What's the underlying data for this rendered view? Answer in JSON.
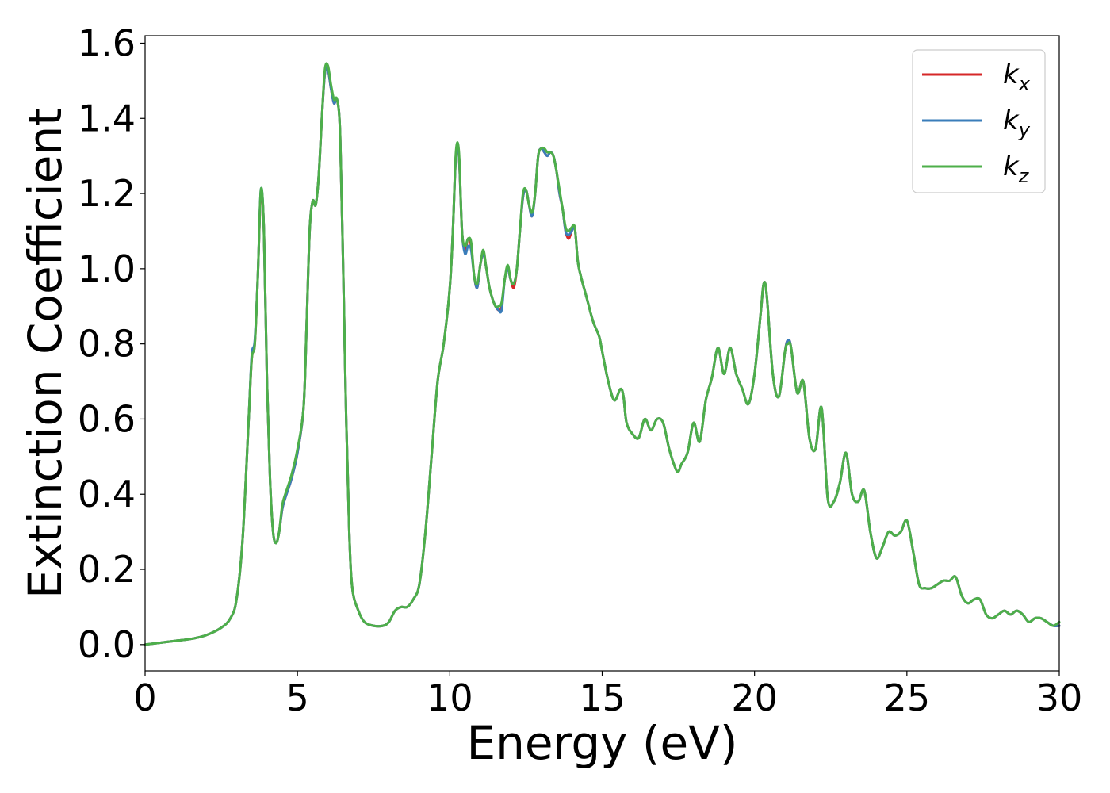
{
  "chart_data": {
    "type": "line",
    "xlabel": "Energy (eV)",
    "ylabel": "Extinction Coefficient",
    "xlim": [
      0,
      30
    ],
    "ylim": [
      -0.07,
      1.62
    ],
    "xticks": [
      0,
      5,
      10,
      15,
      20,
      25,
      30
    ],
    "xtick_labels": [
      "0",
      "5",
      "10",
      "15",
      "20",
      "25",
      "30"
    ],
    "yticks": [
      0.0,
      0.2,
      0.4,
      0.6,
      0.8,
      1.0,
      1.2,
      1.4,
      1.6
    ],
    "ytick_labels": [
      "0.0",
      "0.2",
      "0.4",
      "0.6",
      "0.8",
      "1.0",
      "1.2",
      "1.4",
      "1.6"
    ],
    "grid": false,
    "legend_position": "top-right",
    "series": [
      {
        "name": "kx",
        "label_main": "k",
        "label_sub": "x",
        "color": "#d62728",
        "x": [
          0,
          0.5,
          1.0,
          1.5,
          2.0,
          2.5,
          2.8,
          3.0,
          3.2,
          3.4,
          3.5,
          3.6,
          3.7,
          3.8,
          3.9,
          4.0,
          4.1,
          4.2,
          4.3,
          4.4,
          4.5,
          4.6,
          4.8,
          5.0,
          5.2,
          5.3,
          5.4,
          5.5,
          5.6,
          5.7,
          5.8,
          5.9,
          6.0,
          6.1,
          6.2,
          6.3,
          6.4,
          6.5,
          6.6,
          6.7,
          6.8,
          7.0,
          7.2,
          7.5,
          7.8,
          8.0,
          8.2,
          8.4,
          8.6,
          8.8,
          9.0,
          9.2,
          9.4,
          9.6,
          9.8,
          10.0,
          10.1,
          10.2,
          10.3,
          10.4,
          10.5,
          10.6,
          10.7,
          10.8,
          10.9,
          11.0,
          11.1,
          11.2,
          11.3,
          11.4,
          11.5,
          11.6,
          11.7,
          11.8,
          11.9,
          12.0,
          12.1,
          12.2,
          12.3,
          12.4,
          12.5,
          12.6,
          12.7,
          12.8,
          12.9,
          13.0,
          13.1,
          13.2,
          13.3,
          13.4,
          13.5,
          13.6,
          13.7,
          13.8,
          13.9,
          14.0,
          14.1,
          14.2,
          14.3,
          14.5,
          14.7,
          14.9,
          15.0,
          15.2,
          15.4,
          15.6,
          15.7,
          15.8,
          16.0,
          16.2,
          16.4,
          16.6,
          16.8,
          17.0,
          17.2,
          17.4,
          17.5,
          17.6,
          17.8,
          18.0,
          18.2,
          18.4,
          18.6,
          18.8,
          19.0,
          19.2,
          19.4,
          19.6,
          19.8,
          20.0,
          20.2,
          20.3,
          20.4,
          20.6,
          20.8,
          21.0,
          21.1,
          21.2,
          21.4,
          21.6,
          21.8,
          22.0,
          22.2,
          22.4,
          22.6,
          22.8,
          23.0,
          23.2,
          23.4,
          23.6,
          23.8,
          24.0,
          24.2,
          24.4,
          24.6,
          24.8,
          25.0,
          25.2,
          25.4,
          25.6,
          25.8,
          26.0,
          26.2,
          26.4,
          26.6,
          26.8,
          27.0,
          27.2,
          27.4,
          27.6,
          27.8,
          28.0,
          28.2,
          28.4,
          28.6,
          28.8,
          29.0,
          29.2,
          29.4,
          29.6,
          29.8,
          30.0
        ],
        "y": [
          0.0,
          0.005,
          0.01,
          0.015,
          0.025,
          0.045,
          0.07,
          0.12,
          0.28,
          0.6,
          0.76,
          0.8,
          0.98,
          1.2,
          1.1,
          0.7,
          0.44,
          0.3,
          0.27,
          0.3,
          0.36,
          0.39,
          0.44,
          0.51,
          0.63,
          0.85,
          1.1,
          1.18,
          1.17,
          1.25,
          1.4,
          1.52,
          1.53,
          1.48,
          1.44,
          1.45,
          1.36,
          1.0,
          0.6,
          0.3,
          0.15,
          0.09,
          0.06,
          0.05,
          0.05,
          0.06,
          0.09,
          0.1,
          0.1,
          0.12,
          0.16,
          0.3,
          0.5,
          0.7,
          0.8,
          0.95,
          1.1,
          1.3,
          1.3,
          1.1,
          1.05,
          1.08,
          1.06,
          0.98,
          0.95,
          1.01,
          1.04,
          1.0,
          0.95,
          0.92,
          0.9,
          0.89,
          0.9,
          0.97,
          1.0,
          0.97,
          0.95,
          1.0,
          1.1,
          1.19,
          1.21,
          1.17,
          1.14,
          1.2,
          1.3,
          1.32,
          1.31,
          1.3,
          1.31,
          1.3,
          1.26,
          1.2,
          1.16,
          1.1,
          1.08,
          1.1,
          1.11,
          1.02,
          0.98,
          0.92,
          0.86,
          0.82,
          0.78,
          0.7,
          0.65,
          0.68,
          0.66,
          0.59,
          0.56,
          0.55,
          0.6,
          0.57,
          0.6,
          0.59,
          0.52,
          0.47,
          0.46,
          0.48,
          0.51,
          0.59,
          0.54,
          0.65,
          0.71,
          0.79,
          0.72,
          0.79,
          0.72,
          0.68,
          0.64,
          0.72,
          0.88,
          0.96,
          0.93,
          0.72,
          0.66,
          0.78,
          0.81,
          0.79,
          0.67,
          0.7,
          0.55,
          0.52,
          0.63,
          0.39,
          0.38,
          0.43,
          0.51,
          0.4,
          0.38,
          0.41,
          0.3,
          0.23,
          0.26,
          0.3,
          0.29,
          0.3,
          0.33,
          0.25,
          0.16,
          0.15,
          0.15,
          0.16,
          0.17,
          0.17,
          0.18,
          0.13,
          0.11,
          0.12,
          0.12,
          0.08,
          0.07,
          0.08,
          0.09,
          0.08,
          0.09,
          0.08,
          0.06,
          0.07,
          0.07,
          0.06,
          0.05,
          0.05
        ]
      },
      {
        "name": "ky",
        "label_main": "k",
        "label_sub": "y",
        "color": "#3a7dba",
        "x": [
          0,
          0.5,
          1.0,
          1.5,
          2.0,
          2.5,
          2.8,
          3.0,
          3.2,
          3.4,
          3.5,
          3.6,
          3.7,
          3.8,
          3.9,
          4.0,
          4.1,
          4.2,
          4.3,
          4.4,
          4.5,
          4.6,
          4.8,
          5.0,
          5.2,
          5.3,
          5.4,
          5.5,
          5.6,
          5.7,
          5.8,
          5.9,
          6.0,
          6.1,
          6.2,
          6.3,
          6.4,
          6.5,
          6.6,
          6.7,
          6.8,
          7.0,
          7.2,
          7.5,
          7.8,
          8.0,
          8.2,
          8.4,
          8.6,
          8.8,
          9.0,
          9.2,
          9.4,
          9.6,
          9.8,
          10.0,
          10.1,
          10.2,
          10.3,
          10.4,
          10.5,
          10.6,
          10.7,
          10.8,
          10.9,
          11.0,
          11.1,
          11.2,
          11.3,
          11.4,
          11.5,
          11.6,
          11.7,
          11.8,
          11.9,
          12.0,
          12.1,
          12.2,
          12.3,
          12.4,
          12.5,
          12.6,
          12.7,
          12.8,
          12.9,
          13.0,
          13.1,
          13.2,
          13.3,
          13.4,
          13.5,
          13.6,
          13.7,
          13.8,
          13.9,
          14.0,
          14.1,
          14.2,
          14.3,
          14.5,
          14.7,
          14.9,
          15.0,
          15.2,
          15.4,
          15.6,
          15.7,
          15.8,
          16.0,
          16.2,
          16.4,
          16.6,
          16.8,
          17.0,
          17.2,
          17.4,
          17.5,
          17.6,
          17.8,
          18.0,
          18.2,
          18.4,
          18.6,
          18.8,
          19.0,
          19.2,
          19.4,
          19.6,
          19.8,
          20.0,
          20.2,
          20.3,
          20.4,
          20.6,
          20.8,
          21.0,
          21.1,
          21.2,
          21.4,
          21.6,
          21.8,
          22.0,
          22.2,
          22.4,
          22.6,
          22.8,
          23.0,
          23.2,
          23.4,
          23.6,
          23.8,
          24.0,
          24.2,
          24.4,
          24.6,
          24.8,
          25.0,
          25.2,
          25.4,
          25.6,
          25.8,
          26.0,
          26.2,
          26.4,
          26.6,
          26.8,
          27.0,
          27.2,
          27.4,
          27.6,
          27.8,
          28.0,
          28.2,
          28.4,
          28.6,
          28.8,
          29.0,
          29.2,
          29.4,
          29.6,
          29.8,
          30.0
        ],
        "y": [
          0.0,
          0.005,
          0.01,
          0.015,
          0.025,
          0.045,
          0.07,
          0.12,
          0.28,
          0.6,
          0.77,
          0.81,
          0.98,
          1.21,
          1.1,
          0.7,
          0.44,
          0.3,
          0.27,
          0.3,
          0.36,
          0.39,
          0.44,
          0.51,
          0.63,
          0.85,
          1.1,
          1.18,
          1.17,
          1.25,
          1.4,
          1.52,
          1.53,
          1.48,
          1.44,
          1.45,
          1.36,
          1.0,
          0.6,
          0.3,
          0.15,
          0.09,
          0.06,
          0.05,
          0.05,
          0.06,
          0.09,
          0.1,
          0.1,
          0.12,
          0.16,
          0.3,
          0.5,
          0.7,
          0.8,
          0.95,
          1.1,
          1.3,
          1.3,
          1.1,
          1.04,
          1.06,
          1.05,
          0.98,
          0.95,
          1.01,
          1.04,
          1.0,
          0.95,
          0.92,
          0.9,
          0.89,
          0.89,
          0.97,
          1.0,
          0.97,
          0.96,
          1.0,
          1.1,
          1.19,
          1.21,
          1.17,
          1.14,
          1.2,
          1.3,
          1.32,
          1.31,
          1.3,
          1.31,
          1.3,
          1.26,
          1.2,
          1.16,
          1.1,
          1.09,
          1.1,
          1.11,
          1.02,
          0.98,
          0.92,
          0.86,
          0.82,
          0.78,
          0.7,
          0.65,
          0.68,
          0.66,
          0.59,
          0.56,
          0.55,
          0.6,
          0.57,
          0.6,
          0.59,
          0.52,
          0.47,
          0.46,
          0.48,
          0.51,
          0.59,
          0.54,
          0.65,
          0.71,
          0.79,
          0.72,
          0.79,
          0.72,
          0.68,
          0.64,
          0.72,
          0.88,
          0.96,
          0.93,
          0.72,
          0.66,
          0.78,
          0.81,
          0.79,
          0.67,
          0.7,
          0.55,
          0.52,
          0.63,
          0.39,
          0.38,
          0.43,
          0.51,
          0.4,
          0.38,
          0.41,
          0.3,
          0.23,
          0.26,
          0.3,
          0.29,
          0.3,
          0.33,
          0.25,
          0.16,
          0.15,
          0.15,
          0.16,
          0.17,
          0.17,
          0.18,
          0.13,
          0.11,
          0.12,
          0.12,
          0.08,
          0.07,
          0.08,
          0.09,
          0.08,
          0.09,
          0.08,
          0.06,
          0.07,
          0.07,
          0.06,
          0.05,
          0.05
        ]
      },
      {
        "name": "kz",
        "label_main": "k",
        "label_sub": "z",
        "color": "#4daf4a",
        "x": [
          0,
          0.5,
          1.0,
          1.5,
          2.0,
          2.5,
          2.8,
          3.0,
          3.2,
          3.4,
          3.5,
          3.6,
          3.7,
          3.8,
          3.9,
          4.0,
          4.1,
          4.2,
          4.3,
          4.4,
          4.5,
          4.6,
          4.8,
          5.0,
          5.2,
          5.3,
          5.4,
          5.5,
          5.6,
          5.7,
          5.8,
          5.9,
          6.0,
          6.1,
          6.2,
          6.3,
          6.4,
          6.5,
          6.6,
          6.7,
          6.8,
          7.0,
          7.2,
          7.5,
          7.8,
          8.0,
          8.2,
          8.4,
          8.6,
          8.8,
          9.0,
          9.2,
          9.4,
          9.6,
          9.8,
          10.0,
          10.1,
          10.2,
          10.3,
          10.4,
          10.5,
          10.6,
          10.7,
          10.8,
          10.9,
          11.0,
          11.1,
          11.2,
          11.3,
          11.4,
          11.5,
          11.6,
          11.7,
          11.8,
          11.9,
          12.0,
          12.1,
          12.2,
          12.3,
          12.4,
          12.5,
          12.6,
          12.7,
          12.8,
          12.9,
          13.0,
          13.1,
          13.2,
          13.3,
          13.4,
          13.5,
          13.6,
          13.7,
          13.8,
          13.9,
          14.0,
          14.1,
          14.2,
          14.3,
          14.5,
          14.7,
          14.9,
          15.0,
          15.2,
          15.4,
          15.6,
          15.7,
          15.8,
          16.0,
          16.2,
          16.4,
          16.6,
          16.8,
          17.0,
          17.2,
          17.4,
          17.5,
          17.6,
          17.8,
          18.0,
          18.2,
          18.4,
          18.6,
          18.8,
          19.0,
          19.2,
          19.4,
          19.6,
          19.8,
          20.0,
          20.2,
          20.3,
          20.4,
          20.6,
          20.8,
          21.0,
          21.1,
          21.2,
          21.4,
          21.6,
          21.8,
          22.0,
          22.2,
          22.4,
          22.6,
          22.8,
          23.0,
          23.2,
          23.4,
          23.6,
          23.8,
          24.0,
          24.2,
          24.4,
          24.6,
          24.8,
          25.0,
          25.2,
          25.4,
          25.6,
          25.8,
          26.0,
          26.2,
          26.4,
          26.6,
          26.8,
          27.0,
          27.2,
          27.4,
          27.6,
          27.8,
          28.0,
          28.2,
          28.4,
          28.6,
          28.8,
          29.0,
          29.2,
          29.4,
          29.6,
          29.8,
          30.0
        ],
        "y": [
          0.0,
          0.005,
          0.01,
          0.015,
          0.025,
          0.045,
          0.07,
          0.12,
          0.28,
          0.6,
          0.76,
          0.8,
          0.98,
          1.21,
          1.1,
          0.7,
          0.44,
          0.3,
          0.27,
          0.3,
          0.37,
          0.4,
          0.45,
          0.52,
          0.63,
          0.85,
          1.1,
          1.18,
          1.17,
          1.25,
          1.4,
          1.53,
          1.54,
          1.49,
          1.45,
          1.45,
          1.36,
          1.0,
          0.6,
          0.3,
          0.15,
          0.09,
          0.06,
          0.05,
          0.05,
          0.06,
          0.09,
          0.1,
          0.1,
          0.12,
          0.16,
          0.3,
          0.5,
          0.7,
          0.8,
          0.95,
          1.1,
          1.31,
          1.31,
          1.1,
          1.06,
          1.08,
          1.07,
          0.98,
          0.96,
          1.01,
          1.05,
          1.0,
          0.95,
          0.92,
          0.9,
          0.9,
          0.91,
          0.97,
          1.01,
          0.97,
          0.96,
          1.0,
          1.1,
          1.2,
          1.21,
          1.17,
          1.15,
          1.2,
          1.3,
          1.32,
          1.32,
          1.31,
          1.31,
          1.3,
          1.26,
          1.21,
          1.16,
          1.11,
          1.1,
          1.11,
          1.11,
          1.02,
          0.98,
          0.92,
          0.86,
          0.82,
          0.78,
          0.7,
          0.65,
          0.68,
          0.66,
          0.59,
          0.56,
          0.55,
          0.6,
          0.57,
          0.6,
          0.59,
          0.52,
          0.47,
          0.46,
          0.48,
          0.51,
          0.59,
          0.54,
          0.65,
          0.71,
          0.79,
          0.72,
          0.79,
          0.72,
          0.68,
          0.64,
          0.72,
          0.88,
          0.96,
          0.93,
          0.72,
          0.66,
          0.78,
          0.8,
          0.79,
          0.67,
          0.7,
          0.55,
          0.52,
          0.63,
          0.39,
          0.38,
          0.43,
          0.51,
          0.4,
          0.38,
          0.41,
          0.3,
          0.23,
          0.26,
          0.3,
          0.29,
          0.3,
          0.33,
          0.25,
          0.16,
          0.15,
          0.15,
          0.16,
          0.17,
          0.17,
          0.18,
          0.13,
          0.11,
          0.12,
          0.12,
          0.08,
          0.07,
          0.08,
          0.09,
          0.08,
          0.09,
          0.08,
          0.06,
          0.07,
          0.07,
          0.06,
          0.05,
          0.06
        ]
      }
    ]
  }
}
